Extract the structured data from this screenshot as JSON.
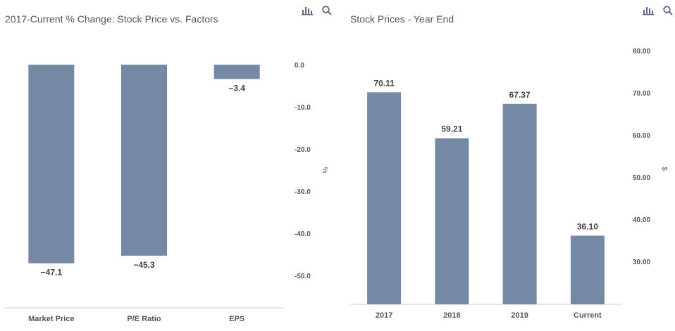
{
  "colors": {
    "bar": "#7689a4",
    "axis_text": "#555555",
    "label_text": "#444444",
    "baseline": "#cccccc",
    "icon": "#5a6b85"
  },
  "toolbar": {
    "chart_icon": "bar-chart-icon",
    "search_icon": "magnifier-icon"
  },
  "chart_data": [
    {
      "type": "bar",
      "title": "2017-Current % Change: Stock Price vs. Factors",
      "categories": [
        "Market Price",
        "P/E Ratio",
        "EPS"
      ],
      "values": [
        -47.1,
        -45.3,
        -3.4
      ],
      "value_labels": [
        "−47.1",
        "−45.3",
        "−3.4"
      ],
      "ylabel": "%",
      "ylim": [
        -57.5,
        0
      ],
      "yticks": [
        0,
        -10,
        -20,
        -30,
        -40,
        -50
      ],
      "ytick_labels": [
        "0.0",
        "-10.0",
        "-20.0",
        "-30.0",
        "-40.0",
        "-50.0"
      ],
      "y_axis_position": "right",
      "grid": false
    },
    {
      "type": "bar",
      "title": "Stock Prices - Year End",
      "categories": [
        "2017",
        "2018",
        "2019",
        "Current"
      ],
      "values": [
        70.11,
        59.21,
        67.37,
        36.1
      ],
      "value_labels": [
        "70.11",
        "59.21",
        "67.37",
        "36.10"
      ],
      "ylabel": "$",
      "ylim": [
        22,
        80
      ],
      "yticks": [
        80,
        70,
        60,
        50,
        40,
        30
      ],
      "ytick_labels": [
        "80.00",
        "70.00",
        "60.00",
        "50.00",
        "40.00",
        "30.00"
      ],
      "y_axis_position": "right",
      "grid": false
    }
  ]
}
